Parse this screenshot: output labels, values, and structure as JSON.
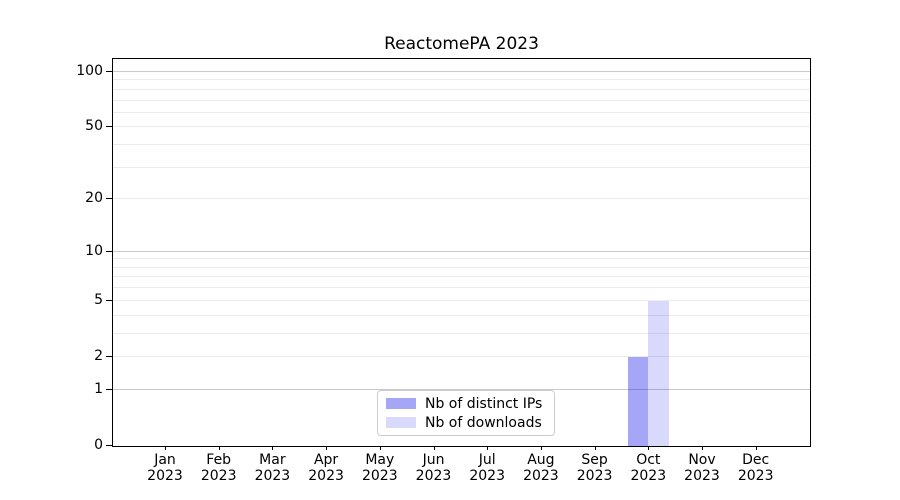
{
  "chart_data": {
    "type": "bar",
    "title": "ReactomePA 2023",
    "months": [
      "Jan",
      "Feb",
      "Mar",
      "Apr",
      "May",
      "Jun",
      "Jul",
      "Aug",
      "Sep",
      "Oct",
      "Nov",
      "Dec"
    ],
    "year": "2023",
    "series": [
      {
        "name": "Nb of distinct IPs",
        "color": "rgba(0,0,230,0.35)",
        "values": [
          0,
          0,
          0,
          0,
          0,
          0,
          0,
          0,
          0,
          2,
          0,
          0
        ]
      },
      {
        "name": "Nb of downloads",
        "color": "rgba(0,0,230,0.15)",
        "values": [
          0,
          0,
          0,
          0,
          0,
          0,
          0,
          0,
          0,
          5,
          0,
          0
        ]
      }
    ],
    "yscale": "log1p",
    "ylim": [
      0,
      116
    ],
    "yticks_labeled": [
      0,
      1,
      2,
      5,
      10,
      20,
      50,
      100
    ],
    "gridlines_major": [
      1,
      10,
      100
    ],
    "gridlines_minor": [
      2,
      3,
      4,
      5,
      6,
      7,
      8,
      9,
      20,
      30,
      40,
      50,
      60,
      70,
      80,
      90
    ],
    "grid": "horizontal",
    "legend_position": "lower center",
    "colors": {
      "grid_major": "#c9c9c9",
      "grid_minor": "#ebebeb",
      "axis": "#000000",
      "text": "#000000",
      "background": "#ffffff"
    }
  }
}
